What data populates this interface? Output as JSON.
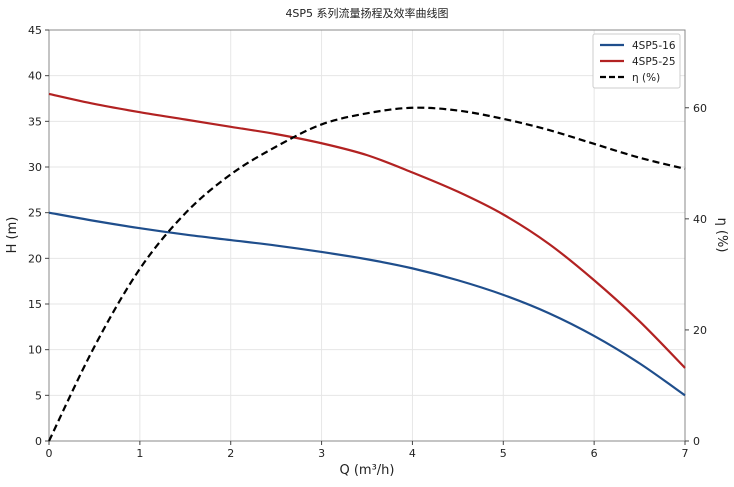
{
  "chart_data": {
    "type": "line",
    "title": "4SP5 系列流量扬程及效率曲线图",
    "xlabel": "Q (m³/h)",
    "ylabel": "H (m)",
    "y2label": "η (%)",
    "xlim": [
      0,
      7
    ],
    "ylim": [
      0,
      45
    ],
    "y2lim": [
      0,
      74
    ],
    "xticks": [
      0,
      1,
      2,
      3,
      4,
      5,
      6,
      7
    ],
    "yticks": [
      0,
      5,
      10,
      15,
      20,
      25,
      30,
      35,
      40,
      45
    ],
    "y2ticks": [
      0,
      20,
      40,
      60
    ],
    "grid": true,
    "legend_position": "top-right",
    "series": [
      {
        "name": "4SP5-16",
        "axis": "left",
        "color": "#1f4e8c",
        "dash": "solid",
        "x": [
          0,
          0.5,
          1,
          1.5,
          2,
          2.5,
          3,
          3.5,
          4,
          4.5,
          5,
          5.5,
          6,
          6.5,
          7
        ],
        "y": [
          25,
          24.1,
          23.3,
          22.6,
          22.0,
          21.4,
          20.7,
          19.9,
          18.9,
          17.6,
          16.0,
          14.0,
          11.5,
          8.5,
          5.0
        ]
      },
      {
        "name": "4SP5-25",
        "axis": "left",
        "color": "#b22222",
        "dash": "solid",
        "x": [
          0,
          0.5,
          1,
          1.5,
          2,
          2.5,
          3,
          3.5,
          4,
          4.5,
          5,
          5.5,
          6,
          6.5,
          7
        ],
        "y": [
          38,
          36.9,
          36.0,
          35.2,
          34.4,
          33.6,
          32.6,
          31.3,
          29.4,
          27.3,
          24.8,
          21.6,
          17.6,
          13.1,
          8.0
        ]
      },
      {
        "name": "η (%)",
        "axis": "right",
        "color": "#000000",
        "dash": "dashed",
        "x": [
          0,
          0.5,
          1,
          1.5,
          2,
          2.5,
          3,
          3.5,
          4,
          4.5,
          5,
          5.5,
          6,
          6.5,
          7
        ],
        "y": [
          0,
          17,
          31,
          41,
          48,
          53,
          57,
          59,
          60,
          59.5,
          58,
          56,
          53.5,
          51,
          49
        ]
      }
    ]
  }
}
